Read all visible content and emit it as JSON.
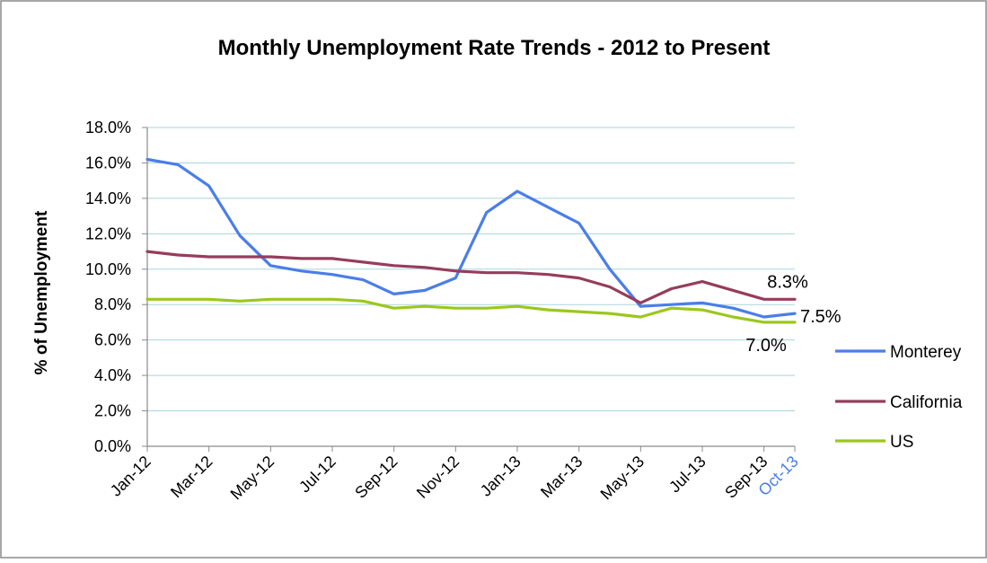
{
  "chart_data": {
    "type": "line",
    "title": "Monthly Unemployment Rate Trends - 2012 to Present",
    "xlabel": "",
    "ylabel": "% of Unemployment",
    "ylim": [
      0,
      18
    ],
    "yticks": [
      "0.0%",
      "2.0%",
      "4.0%",
      "6.0%",
      "8.0%",
      "10.0%",
      "12.0%",
      "14.0%",
      "16.0%",
      "18.0%"
    ],
    "categories": [
      "Jan-12",
      "Feb-12",
      "Mar-12",
      "Apr-12",
      "May-12",
      "Jun-12",
      "Jul-12",
      "Aug-12",
      "Sep-12",
      "Oct-12",
      "Nov-12",
      "Dec-12",
      "Jan-13",
      "Feb-13",
      "Mar-13",
      "Apr-13",
      "May-13",
      "Jun-13",
      "Jul-13",
      "Aug-13",
      "Sep-13",
      "Oct-13"
    ],
    "xtick_labels": [
      {
        "category": "Jan-12",
        "label": "Jan-12"
      },
      {
        "category": "Mar-12",
        "label": "Mar-12"
      },
      {
        "category": "May-12",
        "label": "May-12"
      },
      {
        "category": "Jul-12",
        "label": "Jul-12"
      },
      {
        "category": "Sep-12",
        "label": "Sep-12"
      },
      {
        "category": "Nov-12",
        "label": "Nov-12"
      },
      {
        "category": "Jan-13",
        "label": "Jan-13"
      },
      {
        "category": "Mar-13",
        "label": "Mar-13"
      },
      {
        "category": "May-13",
        "label": "May-13"
      },
      {
        "category": "Jul-13",
        "label": "Jul-13"
      },
      {
        "category": "Sep-13",
        "label": "Sep-13"
      },
      {
        "category": "Oct-13",
        "label": "Oct-13",
        "highlight": true
      }
    ],
    "series": [
      {
        "name": "Monterey",
        "color": "#4a7ee8",
        "values": [
          16.2,
          15.9,
          14.7,
          11.9,
          10.2,
          9.9,
          9.7,
          9.4,
          8.6,
          8.8,
          9.5,
          13.2,
          14.4,
          13.5,
          12.6,
          10.0,
          7.9,
          8.0,
          8.1,
          7.8,
          7.3,
          7.5
        ]
      },
      {
        "name": "California",
        "color": "#953d5c",
        "values": [
          11.0,
          10.8,
          10.7,
          10.7,
          10.7,
          10.6,
          10.6,
          10.4,
          10.2,
          10.1,
          9.9,
          9.8,
          9.8,
          9.7,
          9.5,
          9.0,
          8.1,
          8.9,
          9.3,
          8.8,
          8.3,
          8.3
        ]
      },
      {
        "name": "US",
        "color": "#9cc71d",
        "values": [
          8.3,
          8.3,
          8.3,
          8.2,
          8.3,
          8.3,
          8.3,
          8.2,
          7.8,
          7.9,
          7.8,
          7.8,
          7.9,
          7.7,
          7.6,
          7.5,
          7.3,
          7.8,
          7.7,
          7.3,
          7.0,
          7.0
        ]
      }
    ],
    "data_labels": [
      {
        "series": "California",
        "category": "Oct-13",
        "text": "8.3%",
        "placement": "above"
      },
      {
        "series": "Monterey",
        "category": "Oct-13",
        "text": "7.5%",
        "placement": "right"
      },
      {
        "series": "US",
        "category": "Oct-13",
        "text": "7.0%",
        "placement": "below-left"
      }
    ],
    "grid": true,
    "legend": "right",
    "highlight_tick_color": "#4a7ee8"
  }
}
